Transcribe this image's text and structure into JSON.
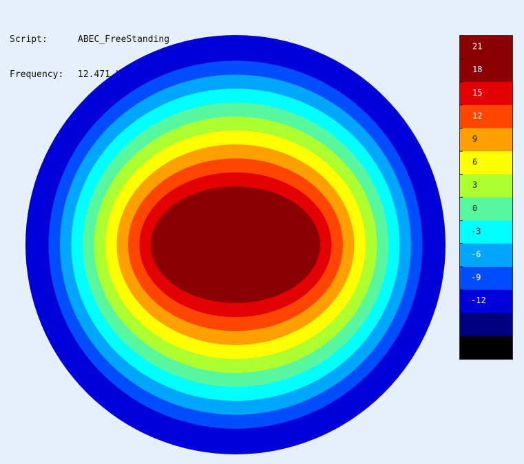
{
  "header": {
    "script_label": "Script:",
    "script_value": "ABEC_FreeStanding",
    "frequency_label": "Frequency:",
    "frequency_value": "12.471 kHz"
  },
  "chart_data": {
    "type": "heatmap",
    "title": "",
    "xlabel": "",
    "ylabel": "",
    "colorbar": {
      "placement": "right",
      "ticks": [
        21,
        18,
        15,
        12,
        9,
        6,
        3,
        0,
        -3,
        -6,
        -9,
        -12
      ],
      "bands": [
        {
          "max": 24,
          "min": 21,
          "color": "#8b0000"
        },
        {
          "max": 21,
          "min": 18,
          "color": "#8b0000"
        },
        {
          "max": 18,
          "min": 15,
          "color": "#e30000"
        },
        {
          "max": 15,
          "min": 12,
          "color": "#ff4500"
        },
        {
          "max": 12,
          "min": 9,
          "color": "#ff9f00"
        },
        {
          "max": 9,
          "min": 6,
          "color": "#ffff00"
        },
        {
          "max": 6,
          "min": 3,
          "color": "#adff2f"
        },
        {
          "max": 3,
          "min": 0,
          "color": "#57f7a0"
        },
        {
          "max": 0,
          "min": -3,
          "color": "#00ffff"
        },
        {
          "max": -3,
          "min": -6,
          "color": "#00a6ff"
        },
        {
          "max": -6,
          "min": -9,
          "color": "#004cff"
        },
        {
          "max": -9,
          "min": -12,
          "color": "#0000d8"
        },
        {
          "max": -12,
          "min": -15,
          "color": "#000080"
        },
        {
          "max": -15,
          "min": -18,
          "color": "#000000"
        }
      ]
    },
    "contour_levels": [
      {
        "level": 18,
        "color": "#8b0000"
      },
      {
        "level": 15,
        "color": "#e30000"
      },
      {
        "level": 12,
        "color": "#ff4500"
      },
      {
        "level": 9,
        "color": "#ff9f00"
      },
      {
        "level": 6,
        "color": "#ffff00"
      },
      {
        "level": 3,
        "color": "#adff2f"
      },
      {
        "level": 0,
        "color": "#57f7a0"
      },
      {
        "level": -3,
        "color": "#00ffff"
      },
      {
        "level": -6,
        "color": "#00a6ff"
      },
      {
        "level": -9,
        "color": "#004cff"
      },
      {
        "level": -12,
        "color": "#0000d8"
      }
    ],
    "edge_color": "#0000d8"
  }
}
